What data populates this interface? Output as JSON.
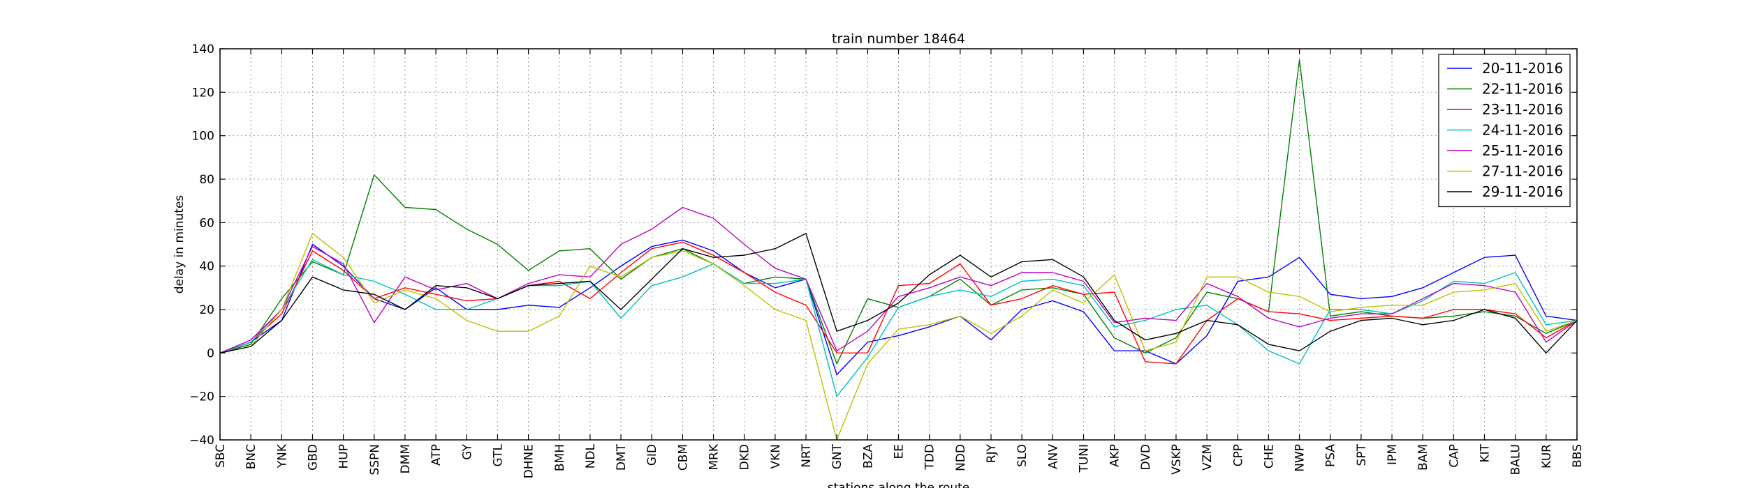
{
  "chart_data": {
    "type": "line",
    "title": "train number 18464",
    "xlabel": "stations along the route",
    "ylabel": "delay in minutes",
    "ylim": [
      -40,
      140
    ],
    "yticks": [
      -40,
      -20,
      0,
      20,
      40,
      60,
      80,
      100,
      120,
      140
    ],
    "grid": true,
    "legend_position": "top-right",
    "categories": [
      "SBC",
      "BNC",
      "YNK",
      "GBD",
      "HUP",
      "SSPN",
      "DMM",
      "ATP",
      "GY",
      "GTL",
      "DHNE",
      "BMH",
      "NDL",
      "DMT",
      "GID",
      "CBM",
      "MRK",
      "DKD",
      "VKN",
      "NRT",
      "GNT",
      "BZA",
      "EE",
      "TDD",
      "NDD",
      "RJY",
      "SLO",
      "ANV",
      "TUNI",
      "AKP",
      "DVD",
      "VSKP",
      "VZM",
      "CPP",
      "CHE",
      "NWP",
      "PSA",
      "SPT",
      "IPM",
      "BAM",
      "CAP",
      "KIT",
      "BALU",
      "KUR",
      "BBS"
    ],
    "series": [
      {
        "name": "20-11-2016",
        "color": "#0000ff",
        "values": [
          0,
          5,
          15,
          50,
          40,
          25,
          20,
          30,
          20,
          20,
          22,
          21,
          30,
          40,
          49,
          52,
          47,
          37,
          30,
          34,
          -10,
          5,
          8,
          12,
          17,
          6,
          20,
          24,
          19,
          1,
          1,
          -5,
          8,
          33,
          35,
          44,
          27,
          25,
          26,
          30,
          37,
          44,
          45,
          17,
          15
        ]
      },
      {
        "name": "22-11-2016",
        "color": "#008000",
        "values": [
          0,
          4,
          25,
          42,
          36,
          82,
          67,
          66,
          57,
          50,
          38,
          47,
          48,
          34,
          44,
          48,
          41,
          32,
          35,
          34,
          -5,
          25,
          21,
          26,
          34,
          22,
          29,
          30,
          27,
          7,
          0,
          7,
          28,
          25,
          19,
          135,
          17,
          19,
          17,
          16,
          17,
          19,
          17,
          9,
          15
        ]
      },
      {
        "name": "23-11-2016",
        "color": "#ff0000",
        "values": [
          0,
          5,
          18,
          47,
          38,
          25,
          30,
          27,
          24,
          25,
          31,
          33,
          25,
          37,
          48,
          51,
          45,
          37,
          28,
          22,
          0,
          0,
          31,
          32,
          41,
          22,
          25,
          31,
          27,
          28,
          -4,
          -5,
          15,
          25,
          19,
          18,
          15,
          16,
          17,
          16,
          20,
          20,
          18,
          7,
          15
        ]
      },
      {
        "name": "24-11-2016",
        "color": "#00bfbf",
        "values": [
          0,
          5,
          20,
          43,
          36,
          33,
          27,
          20,
          20,
          25,
          31,
          31,
          33,
          16,
          31,
          35,
          41,
          32,
          32,
          34,
          -20,
          -2,
          21,
          26,
          29,
          26,
          33,
          34,
          31,
          12,
          15,
          20,
          22,
          13,
          1,
          -5,
          20,
          20,
          18,
          24,
          33,
          32,
          37,
          13,
          15
        ]
      },
      {
        "name": "25-11-2016",
        "color": "#bf00bf",
        "values": [
          0,
          6,
          20,
          49,
          41,
          14,
          35,
          29,
          32,
          25,
          32,
          36,
          35,
          50,
          57,
          67,
          62,
          50,
          39,
          34,
          1,
          10,
          26,
          30,
          35,
          31,
          37,
          37,
          33,
          14,
          16,
          15,
          32,
          26,
          16,
          12,
          16,
          18,
          18,
          25,
          32,
          31,
          28,
          5,
          15
        ]
      },
      {
        "name": "27-11-2016",
        "color": "#bfbf00",
        "values": [
          0,
          3,
          20,
          55,
          44,
          23,
          29,
          25,
          15,
          10,
          10,
          17,
          40,
          35,
          44,
          47,
          41,
          31,
          20,
          15,
          -40,
          -5,
          11,
          13,
          17,
          9,
          17,
          29,
          23,
          36,
          1,
          5,
          35,
          35,
          28,
          26,
          19,
          21,
          22,
          22,
          28,
          29,
          32,
          10,
          15
        ]
      },
      {
        "name": "29-11-2016",
        "color": "#000000",
        "values": [
          0,
          3,
          15,
          35,
          29,
          27,
          20,
          31,
          30,
          25,
          31,
          32,
          33,
          20,
          34,
          48,
          44,
          45,
          48,
          55,
          10,
          15,
          23,
          36,
          45,
          35,
          42,
          43,
          35,
          15,
          6,
          9,
          15,
          13,
          4,
          1,
          10,
          15,
          16,
          13,
          15,
          20,
          16,
          0,
          15
        ]
      }
    ]
  }
}
